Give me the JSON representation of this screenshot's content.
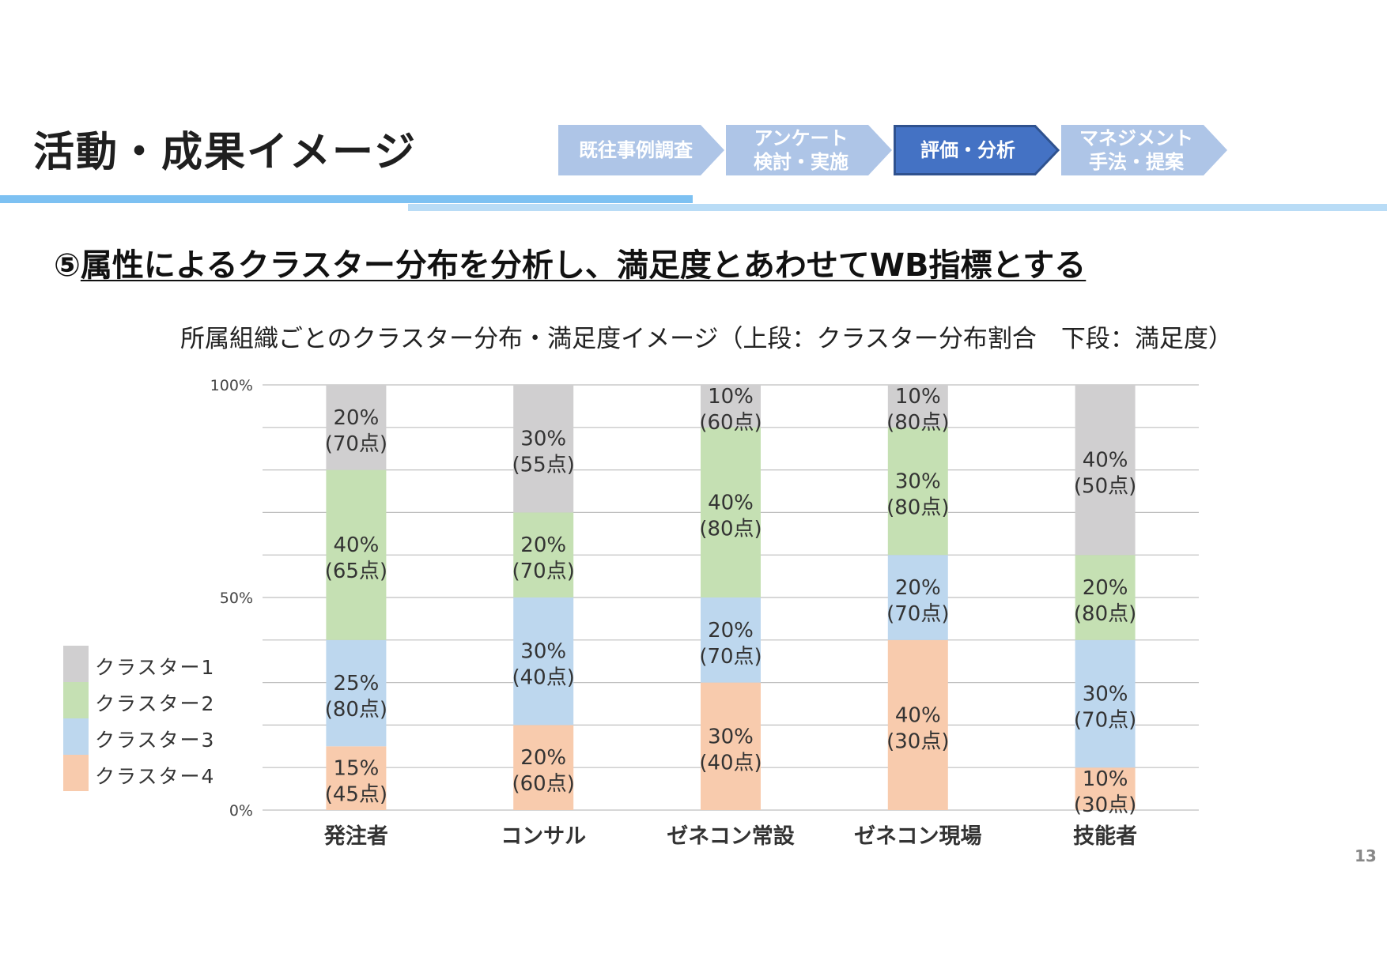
{
  "header": {
    "title": "活動・成果イメージ",
    "steps": [
      {
        "line1": "既往事例調査",
        "line2": "",
        "active": false
      },
      {
        "line1": "アンケート",
        "line2": "検討・実施",
        "active": false
      },
      {
        "line1": "評価・分析",
        "line2": "",
        "active": true
      },
      {
        "line1": "マネジメント",
        "line2": "手法・提案",
        "active": false
      }
    ]
  },
  "subtitle": {
    "number": "⑤",
    "text": "属性によるクラスター分布を分析し、満足度とあわせてWB指標とする"
  },
  "colors": {
    "step_inactive": "#aec5e7",
    "step_active": "#4472c4",
    "step_active_border": "#2f528f",
    "cluster1": "#d0cfd0",
    "cluster2": "#c5e0b3",
    "cluster3": "#bdd7ee",
    "cluster4": "#f8cbad",
    "grid": "#bfbfbf"
  },
  "chart_data": {
    "type": "bar",
    "stacked": true,
    "title": "所属組織ごとのクラスター分布・満足度イメージ（上段：クラスター分布割合　下段：満足度）",
    "categories": [
      "発注者",
      "コンサル",
      "ゼネコン常設",
      "ゼネコン現場",
      "技能者"
    ],
    "ylim": [
      0,
      100
    ],
    "yticks": [
      0,
      50,
      100
    ],
    "ytick_labels": [
      "0%",
      "50%",
      "100%"
    ],
    "series": [
      {
        "name": "クラスター4",
        "color_key": "cluster4",
        "values": [
          15,
          20,
          30,
          40,
          10
        ],
        "labels": [
          "15%",
          "20%",
          "30%",
          "40%",
          "10%"
        ],
        "scores": [
          "(45点)",
          "(60点)",
          "(40点)",
          "(30点)",
          "(30点)"
        ]
      },
      {
        "name": "クラスター3",
        "color_key": "cluster3",
        "values": [
          25,
          30,
          20,
          20,
          30
        ],
        "labels": [
          "25%",
          "30%",
          "20%",
          "20%",
          "30%"
        ],
        "scores": [
          "(80点)",
          "(40点)",
          "(70点)",
          "(70点)",
          "(70点)"
        ]
      },
      {
        "name": "クラスター2",
        "color_key": "cluster2",
        "values": [
          40,
          20,
          40,
          30,
          20
        ],
        "labels": [
          "40%",
          "20%",
          "40%",
          "30%",
          "20%"
        ],
        "scores": [
          "(65点)",
          "(70点)",
          "(80点)",
          "(80点)",
          "(80点)"
        ]
      },
      {
        "name": "クラスター1",
        "color_key": "cluster1",
        "values": [
          20,
          30,
          10,
          10,
          40
        ],
        "labels": [
          "20%",
          "30%",
          "10%",
          "10%",
          "40%"
        ],
        "scores": [
          "(70点)",
          "(55点)",
          "(60点)",
          "(80点)",
          "(50点)"
        ]
      }
    ],
    "legend": [
      "クラスター1",
      "クラスター2",
      "クラスター3",
      "クラスター4"
    ],
    "legend_position": "left"
  },
  "page_number": "13"
}
